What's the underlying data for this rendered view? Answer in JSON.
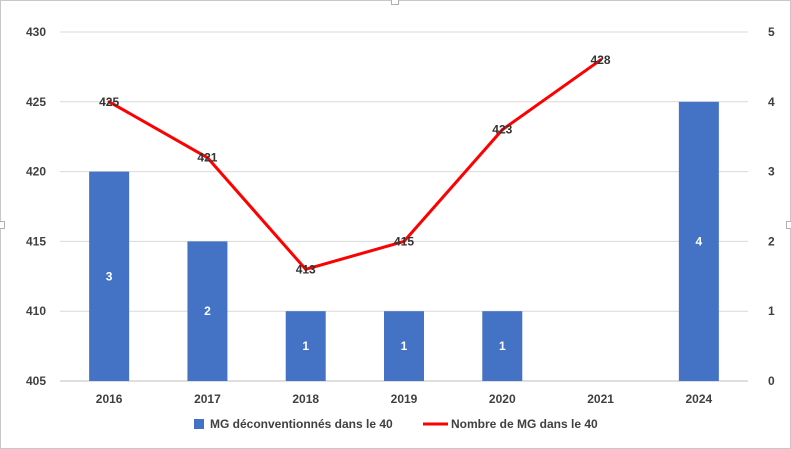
{
  "chart_data": {
    "type": "bar",
    "categories": [
      "2016",
      "2017",
      "2018",
      "2019",
      "2020",
      "2021",
      "2024"
    ],
    "series": [
      {
        "name": "MG déconventionnés dans le 40",
        "type": "bar",
        "axis": "right",
        "values": [
          3,
          2,
          1,
          1,
          1,
          null,
          4
        ],
        "color": "#4472c4"
      },
      {
        "name": "Nombre de MG dans le 40",
        "type": "line",
        "axis": "left",
        "values": [
          425,
          421,
          413,
          415,
          423,
          428,
          null
        ],
        "color": "#ff0000"
      }
    ],
    "y_left": {
      "ylim": [
        405,
        430
      ],
      "ticks": [
        "405",
        "410",
        "415",
        "420",
        "425",
        "430"
      ]
    },
    "y_right": {
      "ylim": [
        0,
        5
      ],
      "ticks": [
        "0",
        "1",
        "2",
        "3",
        "4",
        "5"
      ]
    },
    "grid": true,
    "legend": "bottom"
  }
}
